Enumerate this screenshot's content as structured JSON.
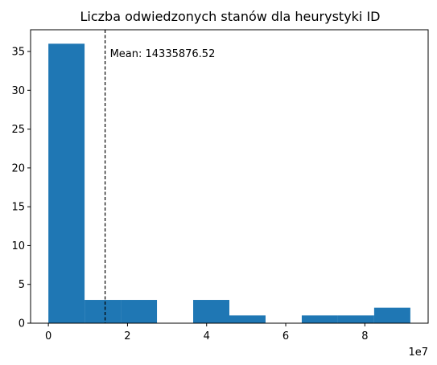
{
  "chart_data": {
    "type": "bar",
    "title": "Liczba odwiedzonych stanów dla heurystyki ID",
    "xlabel": "",
    "ylabel": "",
    "x_offset_label": "1e7",
    "xlim": [
      -0.45,
      9.6
    ],
    "ylim": [
      0,
      37.8
    ],
    "x_ticks": [
      0,
      2,
      4,
      6,
      8
    ],
    "x_tick_labels": [
      "0",
      "2",
      "4",
      "6",
      "8"
    ],
    "y_ticks": [
      0,
      5,
      10,
      15,
      20,
      25,
      30,
      35
    ],
    "y_tick_labels": [
      "0",
      "5",
      "10",
      "15",
      "20",
      "25",
      "30",
      "35"
    ],
    "bin_edges": [
      0.0,
      0.915,
      1.83,
      2.745,
      3.66,
      4.575,
      5.49,
      6.405,
      7.32,
      8.235,
      9.15
    ],
    "counts": [
      36,
      3,
      3,
      0,
      3,
      1,
      0,
      1,
      1,
      2
    ],
    "bar_color": "#1f77b4",
    "mean_value": 1.433587652,
    "mean_label": "Mean: 14335876.52",
    "grid": false,
    "legend": "none"
  }
}
